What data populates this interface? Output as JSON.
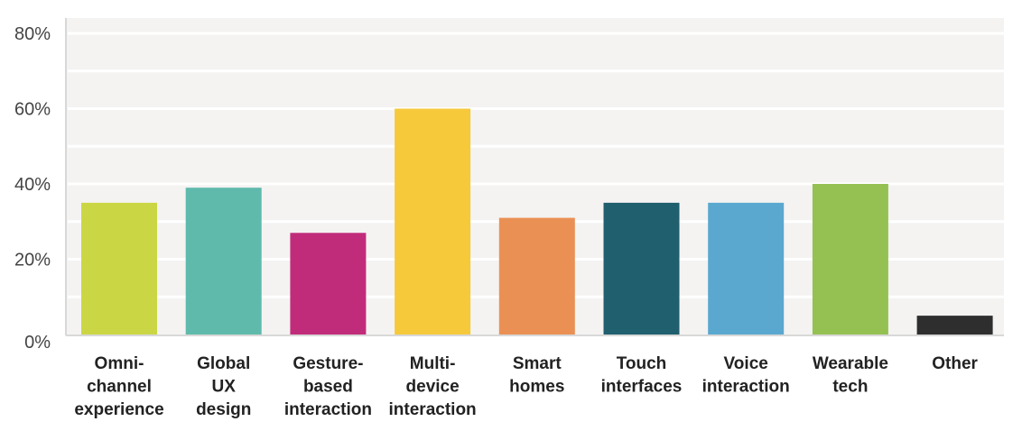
{
  "chart_data": {
    "type": "bar",
    "title": "",
    "xlabel": "",
    "ylabel": "",
    "ylim": [
      0,
      80
    ],
    "yticks": [
      "0%",
      "20%",
      "40%",
      "60%",
      "80%"
    ],
    "grid": true,
    "categories": [
      [
        "Omni-",
        "channel",
        "experience"
      ],
      [
        "Global",
        "UX",
        "design"
      ],
      [
        "Gesture-",
        "based",
        "interaction"
      ],
      [
        "Multi-",
        "device",
        "interaction"
      ],
      [
        "Smart",
        "homes"
      ],
      [
        "Touch",
        "interfaces"
      ],
      [
        "Voice",
        "interaction"
      ],
      [
        "Wearable",
        "tech"
      ],
      [
        "Other"
      ]
    ],
    "values": [
      35,
      39,
      27,
      60,
      31,
      35,
      35,
      40,
      5
    ],
    "colors": [
      "#cbd645",
      "#5fbaac",
      "#c12c7a",
      "#f6c93b",
      "#ea9055",
      "#205f6e",
      "#5aa8cf",
      "#94c152",
      "#2e2e2e"
    ]
  }
}
